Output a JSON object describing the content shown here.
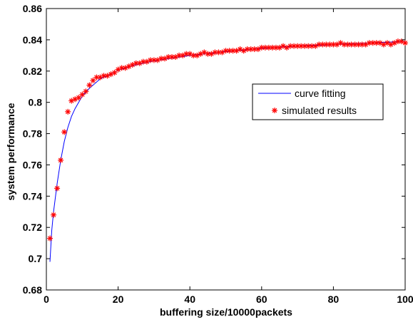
{
  "chart_data": {
    "type": "line",
    "xlabel": "buffering size/10000packets",
    "ylabel": "system performance",
    "xlim": [
      0,
      100
    ],
    "ylim": [
      0.68,
      0.86
    ],
    "x_ticks": [
      0,
      20,
      40,
      60,
      80,
      100
    ],
    "x_tick_labels": [
      "0",
      "20",
      "40",
      "60",
      "80",
      "100"
    ],
    "y_ticks": [
      0.68,
      0.7,
      0.72,
      0.74,
      0.76,
      0.78,
      0.8,
      0.82,
      0.84,
      0.86
    ],
    "y_tick_labels": [
      "0.68",
      "0.7",
      "0.72",
      "0.74",
      "0.76",
      "0.78",
      "0.8",
      "0.82",
      "0.84",
      "0.86"
    ],
    "grid": false,
    "legend": {
      "placement": "right-middle",
      "entries": [
        "curve fitting",
        "simulated results"
      ]
    },
    "series": [
      {
        "name": "curve fitting",
        "style": "line",
        "color": "#0000ff",
        "x": [
          1,
          1.5,
          2,
          3,
          4,
          5,
          6,
          7,
          8,
          10,
          12,
          15,
          20,
          25,
          30,
          40,
          50,
          60,
          70,
          80,
          90,
          100
        ],
        "y": [
          0.698,
          0.718,
          0.73,
          0.748,
          0.763,
          0.775,
          0.784,
          0.791,
          0.796,
          0.804,
          0.809,
          0.815,
          0.8205,
          0.824,
          0.8265,
          0.83,
          0.8325,
          0.8345,
          0.836,
          0.837,
          0.838,
          0.839
        ]
      },
      {
        "name": "simulated results",
        "style": "marker",
        "marker": "asterisk",
        "color": "#ff0000",
        "x": [
          1,
          2,
          3,
          4,
          5,
          6,
          7,
          8,
          9,
          10,
          11,
          12,
          13,
          14,
          15,
          16,
          17,
          18,
          19,
          20,
          21,
          22,
          23,
          24,
          25,
          26,
          27,
          28,
          29,
          30,
          31,
          32,
          33,
          34,
          35,
          36,
          37,
          38,
          39,
          40,
          41,
          42,
          43,
          44,
          45,
          46,
          47,
          48,
          49,
          50,
          51,
          52,
          53,
          54,
          55,
          56,
          57,
          58,
          59,
          60,
          61,
          62,
          63,
          64,
          65,
          66,
          67,
          68,
          69,
          70,
          71,
          72,
          73,
          74,
          75,
          76,
          77,
          78,
          79,
          80,
          81,
          82,
          83,
          84,
          85,
          86,
          87,
          88,
          89,
          90,
          91,
          92,
          93,
          94,
          95,
          96,
          97,
          98,
          99,
          100
        ],
        "y": [
          0.713,
          0.728,
          0.745,
          0.763,
          0.781,
          0.794,
          0.801,
          0.802,
          0.803,
          0.805,
          0.807,
          0.811,
          0.814,
          0.816,
          0.816,
          0.817,
          0.817,
          0.818,
          0.819,
          0.821,
          0.822,
          0.822,
          0.823,
          0.824,
          0.825,
          0.825,
          0.826,
          0.826,
          0.827,
          0.827,
          0.827,
          0.828,
          0.828,
          0.829,
          0.829,
          0.829,
          0.83,
          0.83,
          0.831,
          0.831,
          0.83,
          0.83,
          0.831,
          0.832,
          0.831,
          0.831,
          0.832,
          0.832,
          0.832,
          0.833,
          0.833,
          0.833,
          0.833,
          0.834,
          0.833,
          0.834,
          0.834,
          0.834,
          0.834,
          0.835,
          0.835,
          0.835,
          0.835,
          0.835,
          0.835,
          0.836,
          0.835,
          0.836,
          0.836,
          0.836,
          0.836,
          0.836,
          0.836,
          0.836,
          0.836,
          0.837,
          0.837,
          0.837,
          0.837,
          0.837,
          0.837,
          0.838,
          0.837,
          0.837,
          0.837,
          0.837,
          0.837,
          0.837,
          0.837,
          0.838,
          0.838,
          0.838,
          0.838,
          0.837,
          0.838,
          0.837,
          0.838,
          0.839,
          0.839,
          0.838
        ]
      }
    ]
  }
}
